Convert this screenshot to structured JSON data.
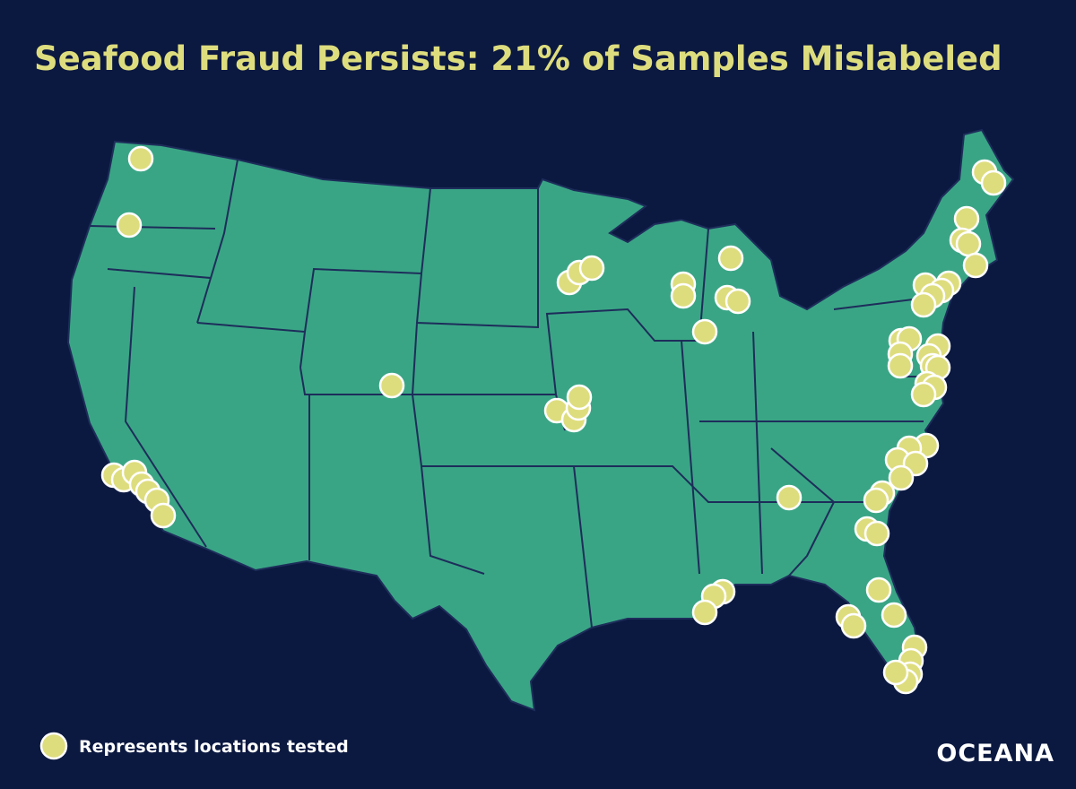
{
  "header": {
    "title": "Seafood Fraud Persists: 21% of Samples Mislabeled"
  },
  "legend": {
    "label": "Represents locations tested"
  },
  "logo": {
    "text": "OCEANA"
  }
}
